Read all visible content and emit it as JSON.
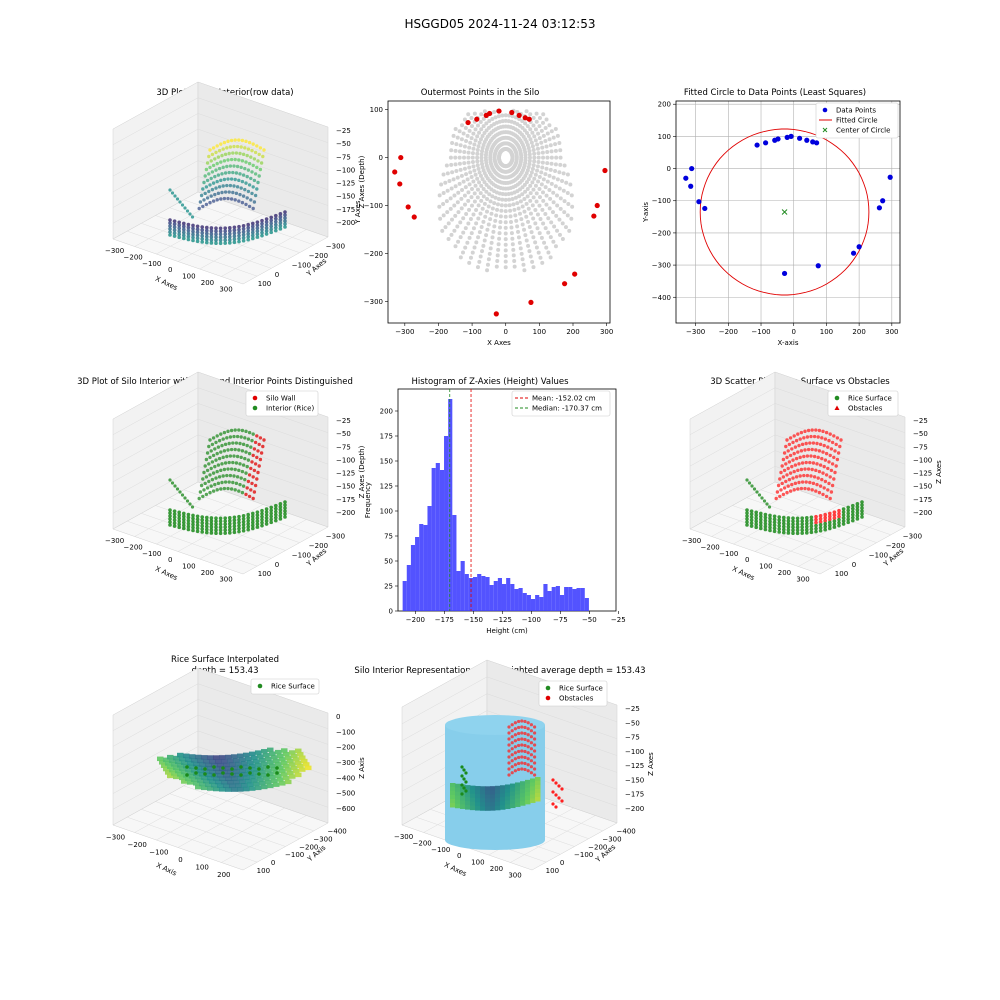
{
  "suptitle": "HSGGD05 2024-11-24 03:12:53",
  "panels": {
    "p3d_raw": {
      "title": "3D Plot of Silo Interior(row data)",
      "xlabel": "X Axes",
      "ylabel": "Y Axes",
      "zlabel": "Z Axes (Depth)",
      "xticks": [
        "−300",
        "−200",
        "−100",
        "0",
        "100",
        "200",
        "300"
      ],
      "yticks": [
        "100",
        "0",
        "−100",
        "−200",
        "−300"
      ],
      "zticks": [
        "−25",
        "−50",
        "−75",
        "−100",
        "−125",
        "−150",
        "−175",
        "−200"
      ]
    },
    "outer": {
      "title": "Outermost Points in the Silo",
      "xlabel": "X Axes",
      "ylabel": "Y Axes",
      "xticks": [
        "−300",
        "−200",
        "−100",
        "0",
        "100",
        "200",
        "300"
      ],
      "yticks": [
        "100",
        "0",
        "−100",
        "−200",
        "−300"
      ]
    },
    "circle": {
      "title": "Fitted Circle to Data Points (Least Squares)",
      "xlabel": "X-axis",
      "ylabel": "Y-axis",
      "xticks": [
        "−300",
        "−200",
        "−100",
        "0",
        "100",
        "200",
        "300"
      ],
      "yticks": [
        "200",
        "100",
        "0",
        "−100",
        "−200",
        "−300",
        "−400"
      ],
      "legend": [
        "Data Points",
        "Fitted Circle",
        "Center of Circle"
      ]
    },
    "p3d_wall": {
      "title": "3D Plot of Silo Interior with Wall and Interior Points Distinguished",
      "xlabel": "X Axes",
      "ylabel": "Y Axes",
      "zlabel": "Z Axes (Depth)",
      "xticks": [
        "−300",
        "−200",
        "−100",
        "0",
        "100",
        "200",
        "300"
      ],
      "yticks": [
        "100",
        "0",
        "−100",
        "−200",
        "−300"
      ],
      "zticks": [
        "−25",
        "−50",
        "−75",
        "−100",
        "−125",
        "−150",
        "−175",
        "−200"
      ],
      "legend": [
        "Silo Wall",
        "Interior (Rice)"
      ]
    },
    "hist": {
      "title": "Histogram of Z-Axies (Height) Values",
      "xlabel": "Height (cm)",
      "ylabel": "Frequency",
      "xticks": [
        "−200",
        "−175",
        "−150",
        "−125",
        "−100",
        "−75",
        "−50",
        "−25"
      ],
      "yticks": [
        "0",
        "25",
        "50",
        "75",
        "100",
        "125",
        "150",
        "175",
        "200"
      ],
      "legend": [
        "Mean: -152.02 cm",
        "Median: -170.37 cm"
      ]
    },
    "p3d_obst": {
      "title": "3D Scatter Plot: Rice Surface vs Obstacles",
      "xlabel": "X Axes",
      "ylabel": "Y Axes",
      "zlabel": "Z Axes",
      "xticks": [
        "−300",
        "−200",
        "−100",
        "0",
        "100",
        "200",
        "300"
      ],
      "yticks": [
        "100",
        "0",
        "−100",
        "−200",
        "−300"
      ],
      "zticks": [
        "−25",
        "−50",
        "−75",
        "−100",
        "−125",
        "−150",
        "−175",
        "−200"
      ],
      "legend": [
        "Rice Surface",
        "Obstacles"
      ]
    },
    "interp": {
      "title": "Rice Surface Interpolated\ndepth = 153.43",
      "xlabel": "X Axis",
      "ylabel": "Y Axis",
      "zlabel": "Z Axis",
      "xticks": [
        "−300",
        "−200",
        "−100",
        "0",
        "100",
        "200"
      ],
      "yticks": [
        "100",
        "0",
        "−100",
        "−200",
        "−300",
        "−400"
      ],
      "zticks": [
        "0",
        "−100",
        "−200",
        "−300",
        "−400",
        "−500",
        "−600"
      ],
      "legend": [
        "Rice Surface"
      ]
    },
    "silo": {
      "title": "Silo Interior Representation using weighted average depth = 153.43",
      "xlabel": "X Axes",
      "ylabel": "Y Axes",
      "zlabel": "Z Axes",
      "xticks": [
        "−300",
        "−200",
        "−100",
        "0",
        "100",
        "200",
        "300"
      ],
      "yticks": [
        "100",
        "0",
        "−100",
        "−200",
        "−300",
        "−400"
      ],
      "zticks": [
        "−25",
        "−50",
        "−75",
        "−100",
        "−125",
        "−150",
        "−175",
        "−200"
      ],
      "legend": [
        "Rice Surface",
        "Obstacles"
      ]
    }
  },
  "chart_data": [
    {
      "type": "scatter",
      "title": "Outermost Points in the Silo",
      "xlabel": "X Axes",
      "ylabel": "Y Axes",
      "xlim": [
        -350,
        310
      ],
      "ylim": [
        -345,
        118
      ],
      "series": [
        {
          "values": [
            [
              -330,
              -30
            ],
            [
              -315,
              -55
            ],
            [
              -312,
              0
            ],
            [
              -290,
              -103
            ],
            [
              -272,
              -124
            ],
            [
              -112,
              73
            ],
            [
              -86,
              80
            ],
            [
              -58,
              88
            ],
            [
              -48,
              92
            ],
            [
              -20,
              97
            ],
            [
              18,
              94
            ],
            [
              40,
              88
            ],
            [
              58,
              83
            ],
            [
              70,
              80
            ],
            [
              75,
              -302
            ],
            [
              -28,
              -326
            ],
            [
              175,
              -263
            ],
            [
              205,
              -243
            ],
            [
              262,
              -122
            ],
            [
              272,
              -100
            ],
            [
              295,
              -27
            ]
          ]
        }
      ]
    },
    {
      "type": "scatter",
      "title": "Fitted Circle to Data Points (Least Squares)",
      "xlabel": "X-axis",
      "ylabel": "Y-axis",
      "xlim": [
        -360,
        325
      ],
      "ylim": [
        -480,
        210
      ],
      "series": [
        {
          "name": "Data Points",
          "values": [
            [
              -330,
              -30
            ],
            [
              -315,
              -55
            ],
            [
              -312,
              0
            ],
            [
              -290,
              -103
            ],
            [
              -272,
              -124
            ],
            [
              -112,
              73
            ],
            [
              -86,
              80
            ],
            [
              -58,
              88
            ],
            [
              -48,
              92
            ],
            [
              -20,
              97
            ],
            [
              -8,
              100
            ],
            [
              18,
              94
            ],
            [
              40,
              88
            ],
            [
              58,
              83
            ],
            [
              70,
              80
            ],
            [
              75,
              -302
            ],
            [
              -28,
              -326
            ],
            [
              183,
              -263
            ],
            [
              200,
              -243
            ],
            [
              262,
              -122
            ],
            [
              272,
              -100
            ],
            [
              295,
              -27
            ]
          ]
        },
        {
          "name": "Fitted Circle",
          "center": [
            -28,
            -135
          ],
          "radius": 258
        },
        {
          "name": "Center of Circle",
          "values": [
            [
              -28,
              -135
            ]
          ]
        }
      ]
    },
    {
      "type": "bar",
      "title": "Histogram of Z-Axies (Height) Values",
      "xlabel": "Height (cm)",
      "ylabel": "Frequency",
      "xlim": [
        -215,
        -27
      ],
      "ylim": [
        0,
        222
      ],
      "bin_start": -211,
      "bin_width": 3.57,
      "values": [
        30,
        46,
        66,
        74,
        87,
        86,
        105,
        143,
        148,
        141,
        175,
        212,
        96,
        40,
        50,
        37,
        33,
        34,
        37,
        35,
        34,
        26,
        30,
        33,
        27,
        33,
        27,
        22,
        23,
        18,
        16,
        12,
        16,
        14,
        27,
        20,
        24,
        25,
        16,
        24,
        24,
        22,
        23,
        23,
        13
      ],
      "mean": -152.02,
      "median": -170.37
    }
  ]
}
